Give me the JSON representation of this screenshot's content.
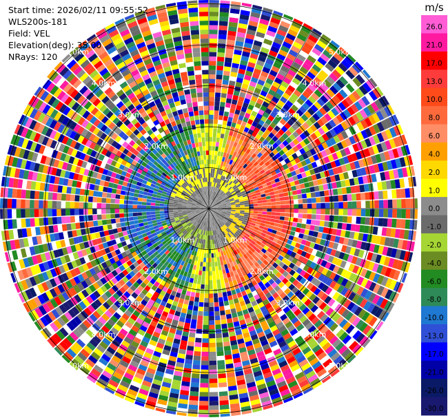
{
  "header": {
    "start_time": "Start time: 2026/02/11 09:55:52",
    "instrument": "WLS200s-181",
    "field": "Field: VEL",
    "elevation": "Elevation(deg): 35.00",
    "nrays": "NRays: 120"
  },
  "chart_data": {
    "type": "heatmap",
    "projection": "polar-ppi",
    "field": "VEL",
    "rays": 120,
    "range_rings_km": [
      1.0,
      2.0,
      3.0,
      4.0,
      5.0
    ],
    "ring_label_text": [
      "1.0km",
      "2.0km",
      "3.0km",
      "4.0km",
      "5.0km"
    ],
    "azimuth_spokes_deg": [
      0,
      30,
      60,
      90,
      120,
      150,
      180,
      210,
      240,
      270,
      300,
      330
    ],
    "colorbar": {
      "unit": "m/s",
      "tick_labels": [
        "26.0",
        "21.0",
        "17.0",
        "13.0",
        "10.0",
        "8.0",
        "6.0",
        "4.0",
        "2.0",
        "1.0",
        "0.0",
        "-1.0",
        "-2.0",
        "-4.0",
        "-6.0",
        "-8.0",
        "-10.0",
        "-13.0",
        "-17.0",
        "-21.0",
        "-26.0",
        "-30.0"
      ],
      "colors": [
        "#ff5cd6",
        "#ff1aa0",
        "#ff0000",
        "#ff3b3b",
        "#ff4a1a",
        "#ff6a3d",
        "#ff8d66",
        "#ffa000",
        "#ffd800",
        "#ffff00",
        "#8c8c8c",
        "#6b6b6b",
        "#a6d633",
        "#6b8c22",
        "#228b22",
        "#2e8b57",
        "#1f78d1",
        "#2f4fd6",
        "#0000ff",
        "#0000a8",
        "#0a1a66",
        "#191970"
      ]
    },
    "structure": {
      "near_range_km": 1.0,
      "near_range_pattern": "approaching (negative) on west/south-west side, receding (positive) on east side, near-zero core",
      "far_range_pattern": "noise: random velocities across full scale"
    }
  }
}
